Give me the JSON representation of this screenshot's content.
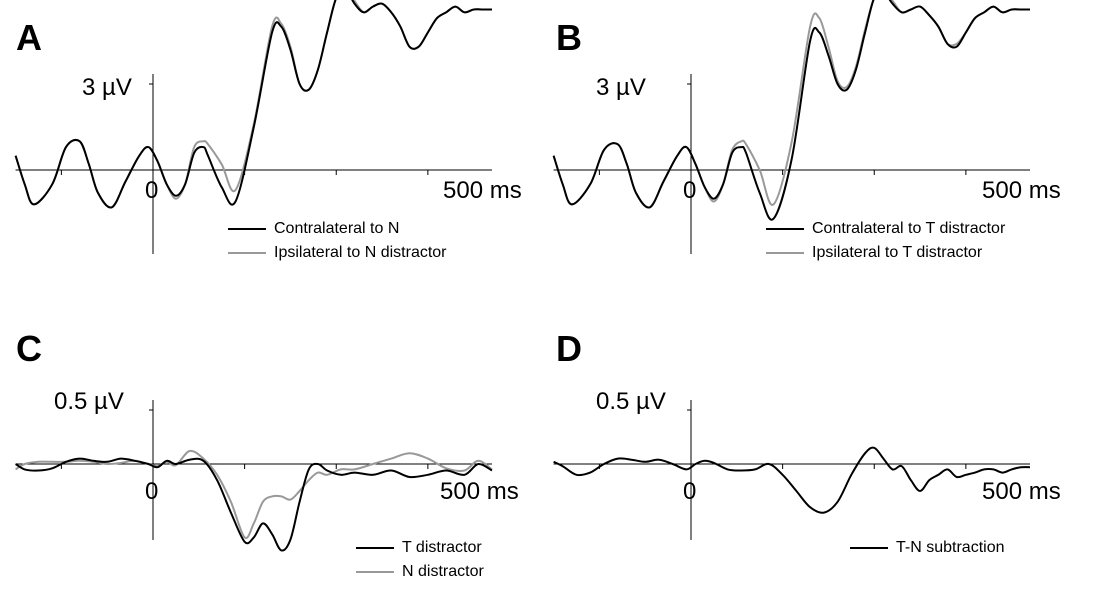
{
  "chart_data": [
    {
      "id": "A",
      "type": "line",
      "panel_label": "A",
      "y_tick_label": "3 µV",
      "x_tick_label": "500 ms",
      "x_zero_label": "0",
      "x_range_ms": [
        -150,
        370
      ],
      "y_range": [
        -5.0,
        6.5
      ],
      "y_tick_value": 3,
      "series": [
        {
          "name": "Contralateral to N",
          "color": "#000000",
          "x": [
            -150,
            -140,
            -130,
            -110,
            -95,
            -80,
            -70,
            -60,
            -45,
            -30,
            -15,
            -5,
            5,
            15,
            25,
            35,
            45,
            55,
            60,
            75,
            90,
            110,
            130,
            140,
            150,
            160,
            170,
            180,
            190,
            200,
            210,
            220,
            230,
            240,
            250,
            260,
            270,
            280,
            290,
            300,
            310,
            320,
            330,
            340,
            350,
            360,
            370
          ],
          "y": [
            0.5,
            -0.5,
            -1.2,
            -0.5,
            0.8,
            1.0,
            0.2,
            -0.8,
            -1.3,
            -0.4,
            0.5,
            0.8,
            0.3,
            -0.5,
            -0.9,
            -0.5,
            0.6,
            0.8,
            0.5,
            -0.6,
            -1.1,
            1.5,
            4.8,
            5.0,
            4.2,
            3.0,
            2.8,
            3.5,
            4.8,
            6.0,
            6.3,
            5.8,
            5.5,
            5.7,
            5.8,
            5.5,
            5.0,
            4.3,
            4.3,
            4.8,
            5.3,
            5.5,
            5.7,
            5.5,
            5.6,
            5.6,
            5.6
          ]
        },
        {
          "name": "Ipsilateral to N distractor",
          "color": "#999999",
          "x": [
            -150,
            -140,
            -130,
            -110,
            -95,
            -80,
            -70,
            -60,
            -45,
            -30,
            -15,
            -5,
            5,
            15,
            25,
            35,
            45,
            55,
            60,
            75,
            90,
            110,
            130,
            140,
            150,
            160,
            170,
            180,
            190,
            200,
            210,
            220,
            230,
            240,
            250,
            260,
            270,
            280,
            290,
            300,
            310,
            320,
            330,
            340,
            350,
            360,
            370
          ],
          "y": [
            0.5,
            -0.5,
            -1.2,
            -0.5,
            0.8,
            1.0,
            0.2,
            -0.8,
            -1.3,
            -0.4,
            0.5,
            0.8,
            0.3,
            -0.5,
            -1.0,
            -0.5,
            0.8,
            1.0,
            0.9,
            0.2,
            -0.7,
            1.6,
            5.0,
            5.1,
            4.3,
            3.0,
            2.8,
            3.5,
            4.8,
            6.0,
            6.4,
            5.9,
            5.5,
            5.7,
            5.8,
            5.5,
            5.0,
            4.3,
            4.3,
            4.8,
            5.3,
            5.5,
            5.7,
            5.5,
            5.6,
            5.6,
            5.6
          ]
        }
      ]
    },
    {
      "id": "B",
      "type": "line",
      "panel_label": "B",
      "y_tick_label": "3 µV",
      "x_tick_label": "500 ms",
      "x_zero_label": "0",
      "x_range_ms": [
        -150,
        370
      ],
      "y_range": [
        -5.0,
        6.5
      ],
      "y_tick_value": 3,
      "series": [
        {
          "name": "Contralateral to T distractor",
          "color": "#000000",
          "x": [
            -150,
            -140,
            -130,
            -110,
            -95,
            -80,
            -70,
            -60,
            -45,
            -30,
            -15,
            -5,
            5,
            15,
            25,
            35,
            45,
            55,
            60,
            75,
            90,
            110,
            130,
            140,
            150,
            160,
            170,
            180,
            190,
            200,
            210,
            220,
            230,
            240,
            250,
            260,
            270,
            280,
            290,
            300,
            310,
            320,
            330,
            340,
            350,
            360,
            370
          ],
          "y": [
            0.5,
            -0.5,
            -1.2,
            -0.5,
            0.7,
            0.9,
            0.2,
            -0.8,
            -1.3,
            -0.4,
            0.5,
            0.8,
            0.2,
            -0.6,
            -1.0,
            -0.5,
            0.6,
            0.8,
            0.6,
            -0.8,
            -1.7,
            0.4,
            4.5,
            4.8,
            4.0,
            3.0,
            2.8,
            3.5,
            4.8,
            6.0,
            6.2,
            5.8,
            5.5,
            5.6,
            5.7,
            5.4,
            5.0,
            4.4,
            4.3,
            4.8,
            5.3,
            5.5,
            5.7,
            5.5,
            5.6,
            5.6,
            5.6
          ]
        },
        {
          "name": "Ipsilateral to T distractor",
          "color": "#999999",
          "x": [
            -150,
            -140,
            -130,
            -110,
            -95,
            -80,
            -70,
            -60,
            -45,
            -30,
            -15,
            -5,
            5,
            15,
            25,
            35,
            45,
            55,
            60,
            75,
            90,
            110,
            130,
            140,
            150,
            160,
            170,
            180,
            190,
            200,
            210,
            220,
            230,
            240,
            250,
            260,
            270,
            280,
            290,
            300,
            310,
            320,
            330,
            340,
            350,
            360,
            370
          ],
          "y": [
            0.5,
            -0.5,
            -1.2,
            -0.5,
            0.7,
            0.9,
            0.2,
            -0.8,
            -1.3,
            -0.4,
            0.5,
            0.8,
            0.2,
            -0.6,
            -1.1,
            -0.5,
            0.7,
            1.0,
            0.9,
            0.0,
            -1.2,
            1.0,
            5.0,
            5.3,
            4.3,
            3.1,
            2.9,
            3.6,
            4.9,
            6.0,
            6.3,
            5.9,
            5.5,
            5.6,
            5.7,
            5.4,
            5.0,
            4.4,
            4.4,
            4.8,
            5.3,
            5.5,
            5.7,
            5.5,
            5.6,
            5.6,
            5.6
          ]
        }
      ]
    },
    {
      "id": "C",
      "type": "line",
      "panel_label": "C",
      "y_tick_label": "0.5 µV",
      "x_tick_label": "500 ms",
      "x_zero_label": "0",
      "x_range_ms": [
        -150,
        370
      ],
      "y_range": [
        -0.8,
        0.55
      ],
      "y_tick_value": 0.5,
      "series": [
        {
          "name": "T distractor",
          "color": "#000000",
          "x": [
            -150,
            -140,
            -125,
            -110,
            -95,
            -80,
            -65,
            -50,
            -35,
            -20,
            -5,
            5,
            15,
            25,
            40,
            55,
            70,
            85,
            100,
            110,
            120,
            130,
            140,
            150,
            160,
            170,
            180,
            190,
            205,
            220,
            240,
            260,
            280,
            300,
            320,
            340,
            355,
            370
          ],
          "y": [
            0.0,
            -0.05,
            -0.06,
            -0.04,
            0.02,
            0.05,
            0.03,
            0.02,
            0.05,
            0.03,
            0.0,
            -0.03,
            0.03,
            0.0,
            0.04,
            0.03,
            -0.15,
            -0.45,
            -0.72,
            -0.68,
            -0.55,
            -0.65,
            -0.8,
            -0.7,
            -0.35,
            -0.05,
            0.0,
            -0.06,
            -0.1,
            -0.08,
            -0.1,
            -0.06,
            -0.12,
            -0.1,
            -0.06,
            -0.1,
            0.0,
            -0.06
          ]
        },
        {
          "name": "N distractor",
          "color": "#999999",
          "x": [
            -150,
            -140,
            -125,
            -110,
            -95,
            -80,
            -65,
            -50,
            -35,
            -20,
            -5,
            5,
            15,
            25,
            40,
            55,
            70,
            85,
            100,
            110,
            120,
            130,
            140,
            150,
            160,
            170,
            180,
            190,
            205,
            220,
            240,
            260,
            280,
            300,
            320,
            340,
            355,
            370
          ],
          "y": [
            -0.05,
            0.0,
            0.02,
            0.02,
            0.02,
            0.03,
            0.02,
            0.0,
            0.01,
            0.03,
            0.0,
            -0.02,
            0.02,
            -0.01,
            0.12,
            0.05,
            -0.1,
            -0.35,
            -0.68,
            -0.55,
            -0.35,
            -0.3,
            -0.3,
            -0.33,
            -0.25,
            -0.15,
            -0.08,
            -0.1,
            -0.05,
            -0.05,
            0.0,
            0.05,
            0.1,
            0.05,
            -0.04,
            -0.06,
            0.03,
            -0.05
          ]
        }
      ]
    },
    {
      "id": "D",
      "type": "line",
      "panel_label": "D",
      "y_tick_label": "0.5 µV",
      "x_tick_label": "500 ms",
      "x_zero_label": "0",
      "x_range_ms": [
        -150,
        370
      ],
      "y_range": [
        -0.8,
        0.55
      ],
      "y_tick_value": 0.5,
      "series": [
        {
          "name": "T-N subtraction",
          "color": "#000000",
          "x": [
            -150,
            -140,
            -125,
            -110,
            -95,
            -80,
            -65,
            -50,
            -35,
            -20,
            -5,
            5,
            15,
            25,
            40,
            55,
            70,
            85,
            100,
            115,
            130,
            145,
            160,
            175,
            190,
            200,
            210,
            220,
            230,
            240,
            250,
            260,
            270,
            280,
            290,
            300,
            310,
            320,
            330,
            340,
            350,
            360,
            370
          ],
          "y": [
            0.02,
            -0.02,
            -0.1,
            -0.08,
            0.0,
            0.05,
            0.04,
            0.02,
            0.04,
            0.0,
            -0.05,
            0.0,
            0.03,
            0.01,
            -0.05,
            -0.06,
            -0.05,
            0.0,
            -0.1,
            -0.25,
            -0.4,
            -0.45,
            -0.35,
            -0.1,
            0.1,
            0.15,
            0.05,
            -0.05,
            -0.02,
            -0.15,
            -0.25,
            -0.15,
            -0.1,
            -0.05,
            -0.12,
            -0.1,
            -0.08,
            -0.05,
            -0.05,
            -0.08,
            -0.05,
            -0.03,
            -0.03
          ]
        }
      ]
    }
  ]
}
